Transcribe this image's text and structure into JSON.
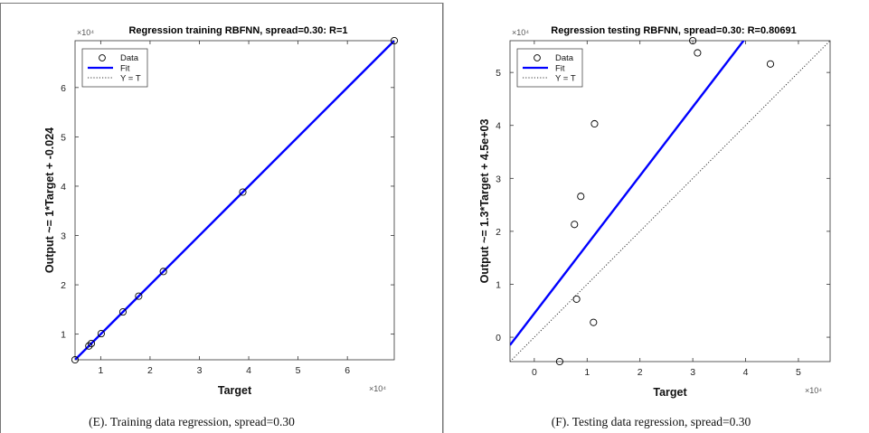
{
  "chart_data": [
    {
      "type": "scatter",
      "title": "Regression training RBFNN, spread=0.30: R=1",
      "xlabel": "Target",
      "ylabel": "Output ~= 1*Target + -0.024",
      "x_exponent_label": "×10⁴",
      "y_exponent_label": "×10⁴",
      "xlim": [
        4800,
        69500
      ],
      "ylim": [
        4800,
        69500
      ],
      "xticks": [
        10000,
        20000,
        30000,
        40000,
        50000,
        60000
      ],
      "yticks": [
        10000,
        20000,
        30000,
        40000,
        50000,
        60000
      ],
      "xtick_labels": [
        "1",
        "2",
        "3",
        "4",
        "5",
        "6"
      ],
      "ytick_labels": [
        "1",
        "2",
        "3",
        "4",
        "5",
        "6"
      ],
      "fit": {
        "slope": 1,
        "intercept": -0.024
      },
      "points": [
        {
          "x": 4800,
          "y": 4800
        },
        {
          "x": 7600,
          "y": 7600
        },
        {
          "x": 8100,
          "y": 8100
        },
        {
          "x": 10100,
          "y": 10100
        },
        {
          "x": 14500,
          "y": 14500
        },
        {
          "x": 17700,
          "y": 17700
        },
        {
          "x": 22700,
          "y": 22700
        },
        {
          "x": 38800,
          "y": 38800
        },
        {
          "x": 69500,
          "y": 69500
        }
      ],
      "legend": {
        "position": "top-left",
        "entries": [
          "Data",
          "Fit",
          "Y = T"
        ]
      },
      "grid": false,
      "caption": "(E). Training data regression, spread=0.30"
    },
    {
      "type": "scatter",
      "title": "Regression testing RBFNN, spread=0.30: R=0.80691",
      "xlabel": "Target",
      "ylabel": "Output ~= 1.3*Target + 4.5e+03",
      "x_exponent_label": "×10⁴",
      "y_exponent_label": "×10⁴",
      "xlim": [
        -4600,
        56000
      ],
      "ylim": [
        -4600,
        56000
      ],
      "xticks": [
        0,
        10000,
        20000,
        30000,
        40000,
        50000
      ],
      "yticks": [
        0,
        10000,
        20000,
        30000,
        40000,
        50000
      ],
      "xtick_labels": [
        "0",
        "1",
        "2",
        "3",
        "4",
        "5"
      ],
      "ytick_labels": [
        "0",
        "1",
        "2",
        "3",
        "4",
        "5"
      ],
      "fit": {
        "slope": 1.3,
        "intercept": 4500
      },
      "points": [
        {
          "x": 4800,
          "y": -4600
        },
        {
          "x": 8000,
          "y": 7200
        },
        {
          "x": 7600,
          "y": 21300
        },
        {
          "x": 8800,
          "y": 26600
        },
        {
          "x": 11200,
          "y": 2800
        },
        {
          "x": 11400,
          "y": 40300
        },
        {
          "x": 30000,
          "y": 56000
        },
        {
          "x": 30900,
          "y": 53700
        },
        {
          "x": 44700,
          "y": 51600
        }
      ],
      "legend": {
        "position": "top-left",
        "entries": [
          "Data",
          "Fit",
          "Y = T"
        ]
      },
      "grid": false,
      "caption": "(F). Testing data regression, spread=0.30"
    }
  ],
  "colors": {
    "fit": "#0000ff",
    "identity": "#333333",
    "data": "#000000",
    "panel_border": "#666666"
  }
}
